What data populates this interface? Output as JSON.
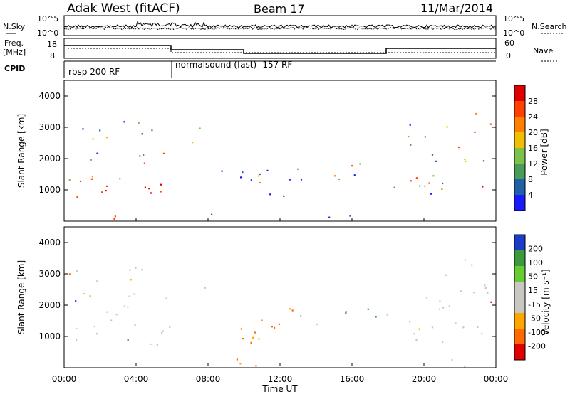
{
  "header": {
    "title": "Adak West (fitACF)",
    "beam": "Beam 17",
    "date": "11/Mar/2014"
  },
  "noise_panel": {
    "left_label": "N.Sky",
    "right_label": "N.Search",
    "left_ticks": [
      "10^5",
      "10^0"
    ],
    "right_ticks": [
      "10^5",
      "10^0"
    ]
  },
  "freq_panel": {
    "left_label_1": "Freq.",
    "left_label_2": "[MHz]",
    "right_label": "Nave",
    "left_ticks": [
      "18",
      "8"
    ],
    "right_ticks": [
      "60",
      "0"
    ]
  },
  "cpid_panel": {
    "label": "CPID",
    "mode_1": "rbsp 200 RF",
    "mode_2": "normalsound (fast) -157 RF"
  },
  "colors": {
    "power_scale": [
      "#1a1aff",
      "#2060a8",
      "#4a9a5a",
      "#7cc24a",
      "#f0c000",
      "#ff8000",
      "#ff4000",
      "#e00000"
    ],
    "velocity_scale": [
      "#1a3cc8",
      "#3c9a3c",
      "#66cc33",
      "#c8c8c0",
      "#c8c8c0",
      "#ffa500",
      "#ff6a00",
      "#e00000"
    ]
  },
  "chart_data": [
    {
      "type": "heatmap",
      "name": "power",
      "ylabel": "Slant Range [km]",
      "yticks": [
        "4000",
        "3000",
        "2000",
        "1000"
      ],
      "ytick_values": [
        4000,
        3000,
        2000,
        1000
      ],
      "ylim": [
        0,
        4500
      ],
      "colorbar_label": "Power [dB]",
      "colorbar_ticks": [
        "28",
        "24",
        "20",
        "16",
        "12",
        "8",
        "4"
      ],
      "colorbar_range": [
        0,
        32
      ],
      "grid": false
    },
    {
      "type": "heatmap",
      "name": "velocity",
      "ylabel": "Slant Range [km]",
      "yticks": [
        "4000",
        "3000",
        "2000",
        "1000"
      ],
      "ytick_values": [
        4000,
        3000,
        2000,
        1000
      ],
      "ylim": [
        0,
        4500
      ],
      "colorbar_label": "Velocity [m s⁻¹]",
      "colorbar_ticks": [
        "200",
        "100",
        "50",
        "15",
        "-15",
        "-50",
        "-100",
        "-200"
      ],
      "grid": false
    }
  ],
  "xaxis": {
    "label": "Time UT",
    "ticks": [
      "00:00",
      "04:00",
      "08:00",
      "12:00",
      "16:00",
      "20:00",
      "00:00"
    ],
    "tick_hours": [
      0,
      4,
      8,
      12,
      16,
      20,
      24
    ],
    "range_hours": [
      0,
      24
    ]
  }
}
